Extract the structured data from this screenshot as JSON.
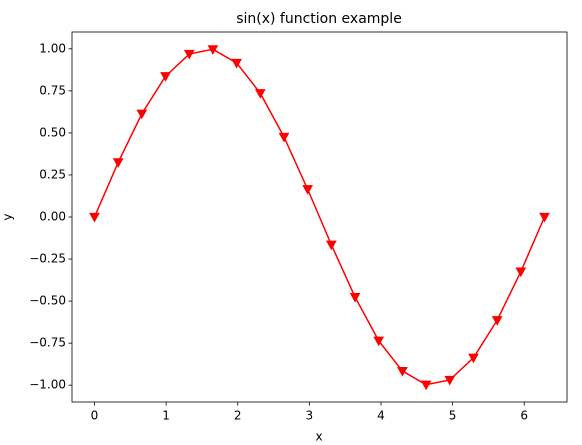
{
  "chart_data": {
    "type": "line",
    "title": "sin(x) function example",
    "x_label": "x",
    "y_label": "y",
    "x": [
      0,
      0.331,
      0.661,
      0.992,
      1.323,
      1.653,
      1.984,
      2.315,
      2.646,
      2.976,
      3.307,
      3.638,
      3.968,
      4.299,
      4.63,
      4.96,
      5.291,
      5.622,
      5.952,
      6.283
    ],
    "series": [
      {
        "name": "sin(x)",
        "color": "#ff0000",
        "marker": "triangle-down",
        "values": [
          0,
          0.325,
          0.614,
          0.837,
          0.969,
          0.997,
          0.916,
          0.736,
          0.476,
          0.165,
          -0.165,
          -0.476,
          -0.736,
          -0.916,
          -0.997,
          -0.969,
          -0.837,
          -0.614,
          -0.325,
          0
        ]
      }
    ],
    "xlim": [
      -0.314,
      6.597
    ],
    "xticks": [
      0,
      1,
      2,
      3,
      4,
      5,
      6
    ],
    "ylim": [
      -1.1,
      1.1
    ],
    "yticks": [
      {
        "value": -1,
        "label": "−1.00"
      },
      {
        "value": -0.75,
        "label": "−0.75"
      },
      {
        "value": -0.5,
        "label": "−0.50"
      },
      {
        "value": -0.25,
        "label": "−0.25"
      },
      {
        "value": 0,
        "label": "0.00"
      },
      {
        "value": 0.25,
        "label": "0.25"
      },
      {
        "value": 0.5,
        "label": "0.50"
      },
      {
        "value": 0.75,
        "label": "0.75"
      },
      {
        "value": 1,
        "label": "1.00"
      }
    ],
    "grid": false
  }
}
